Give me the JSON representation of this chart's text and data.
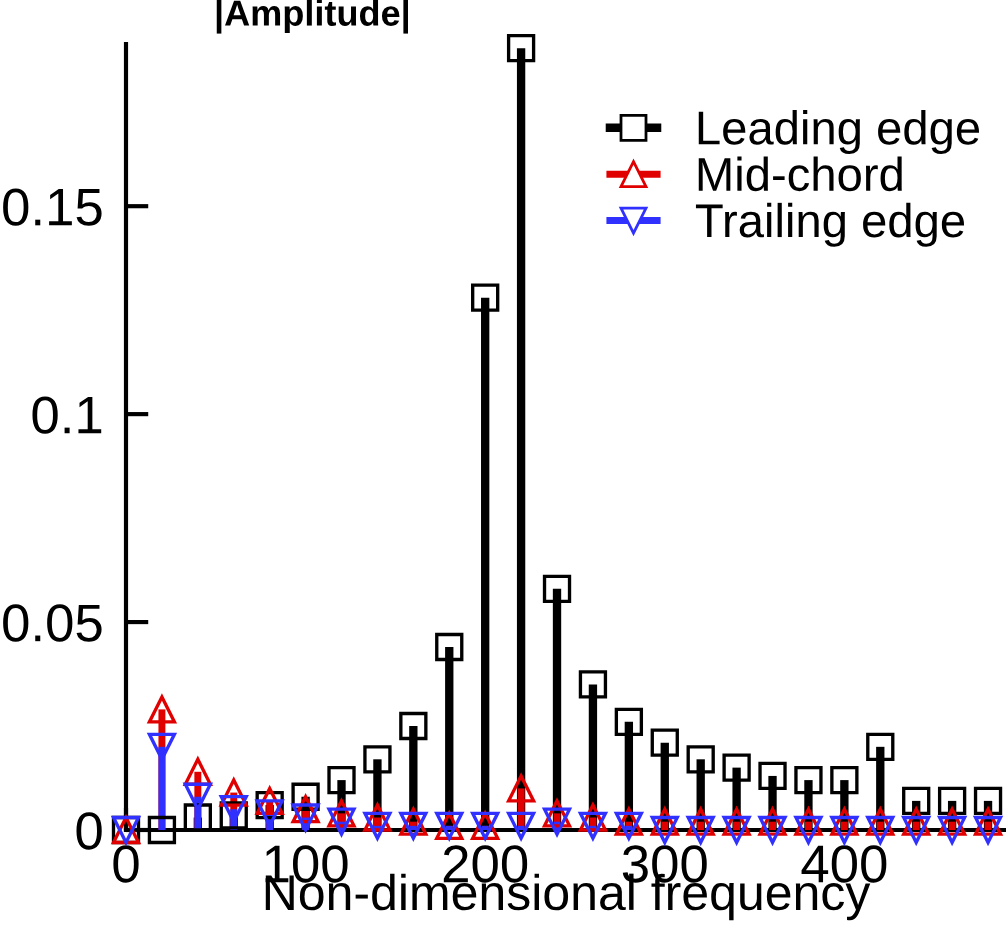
{
  "chart_data": {
    "type": "lollipop",
    "xlabel": "Non-dimensional frequency",
    "ylabel": "|Amplitude|",
    "x": [
      0,
      20,
      40,
      60,
      80,
      100,
      120,
      140,
      160,
      180,
      200,
      220,
      240,
      260,
      280,
      300,
      320,
      340,
      360,
      380,
      400,
      420,
      440,
      460,
      480
    ],
    "series": [
      {
        "name": "Leading edge",
        "color": "#000000",
        "marker": "square",
        "values": [
          0,
          0,
          0.003,
          0.0035,
          0.006,
          0.008,
          0.012,
          0.017,
          0.025,
          0.044,
          0.128,
          0.188,
          0.058,
          0.035,
          0.026,
          0.021,
          0.017,
          0.015,
          0.013,
          0.012,
          0.012,
          0.02,
          0.007,
          0.007,
          0.007
        ]
      },
      {
        "name": "Mid-chord",
        "color": "#e00000",
        "marker": "triangle",
        "values": [
          0,
          0.029,
          0.014,
          0.009,
          0.007,
          0.005,
          0.004,
          0.003,
          0.002,
          0.001,
          0.001,
          0.01,
          0.004,
          0.003,
          0.002,
          0.002,
          0.002,
          0.002,
          0.002,
          0.002,
          0.002,
          0.002,
          0.002,
          0.002,
          0.002
        ]
      },
      {
        "name": "Trailing edge",
        "color": "#3030ff",
        "marker": "triangle_down",
        "values": [
          0,
          0.02,
          0.008,
          0.005,
          0.004,
          0.003,
          0.002,
          0.001,
          0.001,
          0.001,
          0.001,
          0.001,
          0.002,
          0.001,
          0.001,
          0,
          0,
          0,
          0,
          0,
          0,
          0,
          0,
          0,
          0
        ]
      }
    ],
    "xlim": [
      0,
      490
    ],
    "ylim": [
      0,
      0.189
    ],
    "xticks": [
      0,
      100,
      200,
      300,
      400
    ],
    "yticks": [
      0,
      0.05,
      {
        "value": 0.1,
        "label": "0.1"
      },
      0.15
    ],
    "legend": "top right",
    "grid": false
  }
}
